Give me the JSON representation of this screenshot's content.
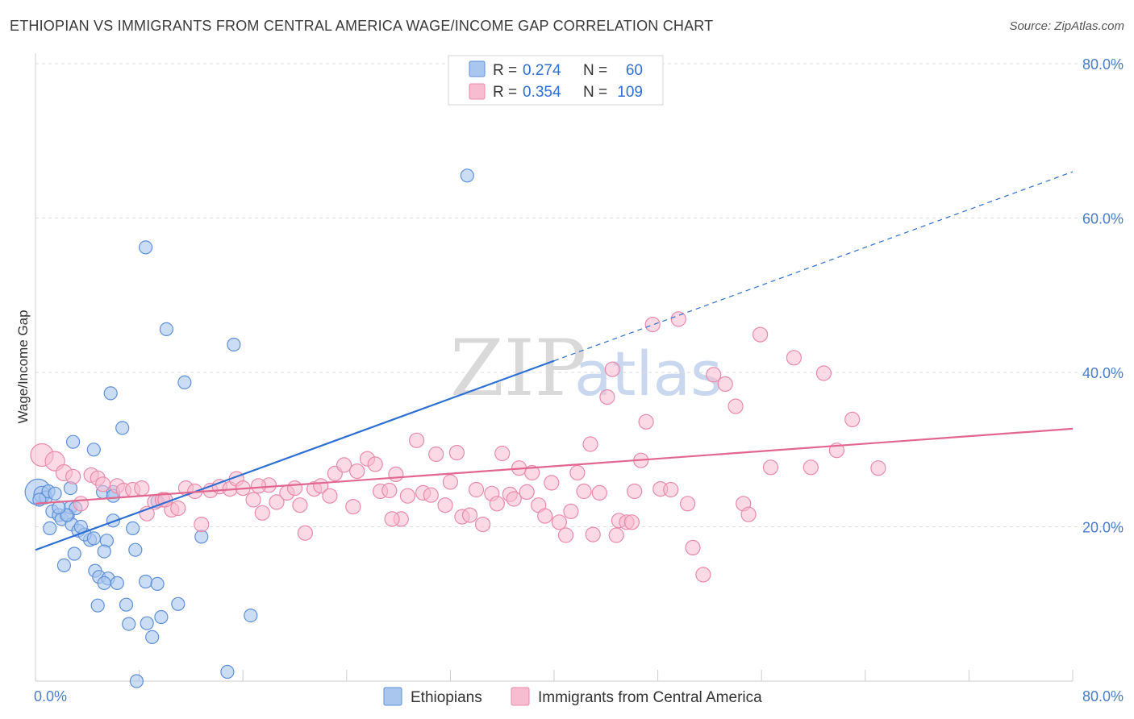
{
  "header": {
    "title": "ETHIOPIAN VS IMMIGRANTS FROM CENTRAL AMERICA WAGE/INCOME GAP CORRELATION CHART",
    "source": "Source: ZipAtlas.com"
  },
  "watermark": {
    "part1": "ZIP",
    "part2": "atlas"
  },
  "colors": {
    "blue_fill": "#a9c6ef",
    "blue_stroke": "#5f8fd8",
    "blue_line": "#2d6fd2",
    "pink_fill": "#f7bcd0",
    "pink_stroke": "#e98aa9",
    "pink_line": "#e2678f",
    "grid": "#dddddd",
    "axis_text": "#4a7cc9"
  },
  "legend": {
    "r_label": "R =",
    "n_label": "N =",
    "rows": [
      {
        "r": "0.274",
        "n": "60"
      },
      {
        "r": "0.354",
        "n": "109"
      }
    ]
  },
  "chart_data": {
    "type": "scatter",
    "xlabel": "",
    "ylabel": "Wage/Income Gap",
    "xlim": [
      0,
      80
    ],
    "ylim": [
      0,
      80
    ],
    "x_tick_labels": [
      "0.0%",
      "80.0%"
    ],
    "y_ticks": [
      20,
      40,
      60,
      80
    ],
    "y_tick_labels": [
      "20.0%",
      "40.0%",
      "60.0%",
      "80.0%"
    ],
    "grid": true,
    "legend_position": "top-center",
    "series": [
      {
        "name": "Ethiopians",
        "trend": {
          "x0": 0,
          "y0": 17.0,
          "x1": 40,
          "y1": 41.5,
          "dash_to_x": 80,
          "dash_to_y": 66.0
        },
        "points": [
          [
            0.2,
            24.5,
            16
          ],
          [
            0.5,
            24.2,
            10
          ],
          [
            0.8,
            23.8,
            8
          ],
          [
            1.0,
            24.6,
            8
          ],
          [
            0.3,
            23.5,
            8
          ],
          [
            1.3,
            22.0,
            8
          ],
          [
            1.8,
            21.5,
            8
          ],
          [
            2.0,
            21.0,
            8
          ],
          [
            2.5,
            21.5,
            8
          ],
          [
            2.7,
            22.5,
            8
          ],
          [
            1.1,
            19.8,
            8
          ],
          [
            2.8,
            20.3,
            8
          ],
          [
            3.3,
            19.5,
            8
          ],
          [
            3.1,
            22.4,
            8
          ],
          [
            2.7,
            25.0,
            8
          ],
          [
            2.9,
            31.0,
            8
          ],
          [
            4.5,
            30.0,
            8
          ],
          [
            5.2,
            24.5,
            8
          ],
          [
            6.0,
            24.5,
            8
          ],
          [
            4.2,
            18.3,
            8
          ],
          [
            5.5,
            18.2,
            8
          ],
          [
            5.3,
            16.8,
            8
          ],
          [
            3.0,
            16.5,
            8
          ],
          [
            2.2,
            15.0,
            8
          ],
          [
            4.6,
            14.3,
            8
          ],
          [
            4.9,
            13.5,
            8
          ],
          [
            5.6,
            13.3,
            8
          ],
          [
            5.3,
            12.7,
            8
          ],
          [
            6.3,
            12.7,
            8
          ],
          [
            4.8,
            9.8,
            8
          ],
          [
            7.0,
            9.9,
            8
          ],
          [
            7.2,
            7.4,
            8
          ],
          [
            8.5,
            12.9,
            8
          ],
          [
            9.4,
            12.6,
            8
          ],
          [
            9.7,
            8.3,
            8
          ],
          [
            8.6,
            7.5,
            8
          ],
          [
            9.0,
            5.7,
            8
          ],
          [
            11.0,
            10.0,
            8
          ],
          [
            7.7,
            17.0,
            8
          ],
          [
            7.5,
            19.8,
            8
          ],
          [
            6.0,
            20.8,
            8
          ],
          [
            9.4,
            23.3,
            8
          ],
          [
            12.8,
            18.7,
            8
          ],
          [
            5.8,
            37.3,
            8
          ],
          [
            6.7,
            32.8,
            8
          ],
          [
            8.5,
            56.2,
            8
          ],
          [
            10.1,
            45.6,
            8
          ],
          [
            11.5,
            38.7,
            8
          ],
          [
            15.3,
            43.6,
            8
          ],
          [
            16.6,
            8.5,
            8
          ],
          [
            14.8,
            1.2,
            8
          ],
          [
            7.8,
            0.0,
            8
          ],
          [
            33.3,
            65.5,
            8
          ],
          [
            6.0,
            24.0,
            8
          ],
          [
            3.8,
            19.0,
            8
          ],
          [
            4.5,
            18.5,
            8
          ],
          [
            1.5,
            24.3,
            8
          ],
          [
            2.4,
            21.5,
            8
          ],
          [
            3.5,
            20.0,
            8
          ],
          [
            1.8,
            22.5,
            8
          ]
        ]
      },
      {
        "name": "Immigrants from Central America",
        "trend": {
          "x0": 0,
          "y0": 23.0,
          "x1": 80,
          "y1": 32.7
        },
        "points": [
          [
            0.5,
            29.3,
            14
          ],
          [
            1.5,
            28.5,
            12
          ],
          [
            2.2,
            27.0,
            10
          ],
          [
            2.9,
            26.5,
            9
          ],
          [
            3.5,
            23.0,
            9
          ],
          [
            4.3,
            26.7,
            9
          ],
          [
            4.8,
            26.3,
            9
          ],
          [
            5.2,
            25.5,
            9
          ],
          [
            6.3,
            25.3,
            9
          ],
          [
            6.8,
            24.7,
            9
          ],
          [
            7.5,
            24.8,
            9
          ],
          [
            8.2,
            25.0,
            9
          ],
          [
            8.6,
            21.7,
            9
          ],
          [
            9.2,
            23.2,
            9
          ],
          [
            9.8,
            23.5,
            9
          ],
          [
            10.5,
            22.2,
            9
          ],
          [
            11.0,
            22.4,
            9
          ],
          [
            11.6,
            25.0,
            9
          ],
          [
            12.3,
            24.6,
            9
          ],
          [
            12.8,
            20.3,
            9
          ],
          [
            13.5,
            24.7,
            9
          ],
          [
            14.2,
            25.2,
            9
          ],
          [
            15.0,
            24.9,
            9
          ],
          [
            15.5,
            26.2,
            9
          ],
          [
            16.0,
            25.0,
            9
          ],
          [
            16.8,
            23.5,
            9
          ],
          [
            17.5,
            21.8,
            9
          ],
          [
            18.0,
            25.4,
            9
          ],
          [
            18.6,
            23.2,
            9
          ],
          [
            19.4,
            24.4,
            9
          ],
          [
            20.0,
            25.0,
            9
          ],
          [
            20.4,
            22.8,
            9
          ],
          [
            20.8,
            19.2,
            9
          ],
          [
            21.5,
            24.9,
            9
          ],
          [
            22.0,
            25.3,
            9
          ],
          [
            22.7,
            24.0,
            9
          ],
          [
            23.1,
            26.9,
            9
          ],
          [
            23.8,
            28.0,
            9
          ],
          [
            24.5,
            22.6,
            9
          ],
          [
            24.8,
            27.2,
            9
          ],
          [
            25.6,
            28.8,
            9
          ],
          [
            26.2,
            28.1,
            9
          ],
          [
            26.6,
            24.6,
            9
          ],
          [
            27.3,
            24.7,
            9
          ],
          [
            27.8,
            26.8,
            9
          ],
          [
            28.2,
            21.0,
            9
          ],
          [
            28.7,
            24.0,
            9
          ],
          [
            29.4,
            31.2,
            9
          ],
          [
            29.9,
            24.4,
            9
          ],
          [
            30.5,
            24.1,
            9
          ],
          [
            30.9,
            29.4,
            9
          ],
          [
            31.6,
            22.8,
            9
          ],
          [
            32.0,
            25.8,
            9
          ],
          [
            32.5,
            29.6,
            9
          ],
          [
            32.9,
            21.3,
            9
          ],
          [
            33.5,
            21.5,
            9
          ],
          [
            34.0,
            24.8,
            9
          ],
          [
            34.5,
            20.3,
            9
          ],
          [
            35.2,
            24.3,
            9
          ],
          [
            35.6,
            23.0,
            9
          ],
          [
            36.0,
            29.5,
            9
          ],
          [
            36.6,
            24.2,
            9
          ],
          [
            37.3,
            27.6,
            9
          ],
          [
            37.9,
            24.5,
            9
          ],
          [
            38.3,
            27.0,
            9
          ],
          [
            38.8,
            22.8,
            9
          ],
          [
            39.3,
            21.4,
            9
          ],
          [
            39.8,
            25.7,
            9
          ],
          [
            40.4,
            20.6,
            9
          ],
          [
            40.9,
            18.9,
            9
          ],
          [
            41.3,
            22.0,
            9
          ],
          [
            41.8,
            27.0,
            9
          ],
          [
            42.3,
            24.6,
            9
          ],
          [
            42.8,
            30.7,
            9
          ],
          [
            43.5,
            24.4,
            9
          ],
          [
            44.1,
            36.8,
            9
          ],
          [
            44.5,
            40.4,
            9
          ],
          [
            45.0,
            20.8,
            9
          ],
          [
            45.6,
            20.6,
            9
          ],
          [
            46.2,
            24.6,
            9
          ],
          [
            46.7,
            28.6,
            9
          ],
          [
            47.1,
            33.6,
            9
          ],
          [
            47.6,
            46.2,
            9
          ],
          [
            48.2,
            24.9,
            9
          ],
          [
            49.0,
            24.8,
            9
          ],
          [
            49.6,
            46.9,
            9
          ],
          [
            50.3,
            23.0,
            9
          ],
          [
            50.7,
            17.3,
            9
          ],
          [
            51.5,
            13.8,
            9
          ],
          [
            52.3,
            39.7,
            9
          ],
          [
            53.2,
            38.5,
            9
          ],
          [
            54.0,
            35.6,
            9
          ],
          [
            54.6,
            23.0,
            9
          ],
          [
            55.0,
            21.6,
            9
          ],
          [
            55.9,
            44.9,
            9
          ],
          [
            56.7,
            27.7,
            9
          ],
          [
            58.5,
            41.9,
            9
          ],
          [
            59.8,
            27.7,
            9
          ],
          [
            60.8,
            39.9,
            9
          ],
          [
            61.8,
            29.9,
            9
          ],
          [
            63.0,
            33.9,
            9
          ],
          [
            65.0,
            27.6,
            9
          ],
          [
            43.0,
            19.0,
            9
          ],
          [
            46.0,
            20.6,
            9
          ],
          [
            44.8,
            18.9,
            9
          ],
          [
            10.0,
            23.5,
            9
          ],
          [
            17.2,
            25.3,
            9
          ],
          [
            27.5,
            21.0,
            9
          ],
          [
            36.9,
            23.6,
            9
          ]
        ]
      }
    ]
  }
}
